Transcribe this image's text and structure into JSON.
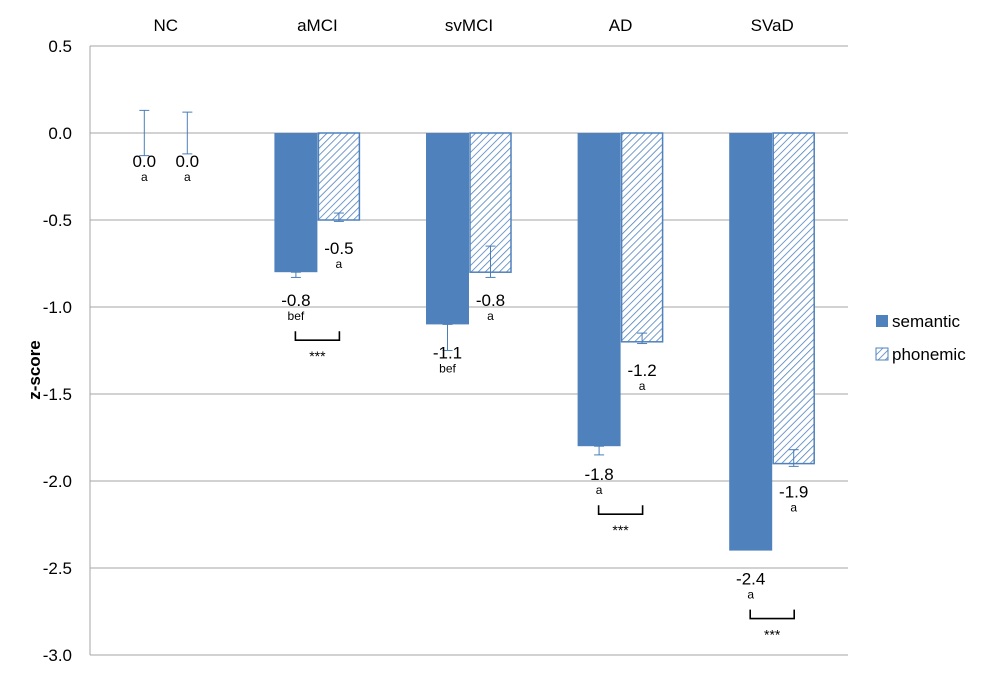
{
  "chart_data": {
    "type": "bar",
    "categories": [
      "NC",
      "aMCI",
      "svMCI",
      "AD",
      "SVaD"
    ],
    "ylabel": "z-score",
    "ylim": [
      -3.0,
      0.5
    ],
    "yticks": [
      "0.5",
      "0.0",
      "-0.5",
      "-1.0",
      "-1.5",
      "-2.0",
      "-2.5",
      "-3.0"
    ],
    "grid": true,
    "legend_position": "right",
    "series": [
      {
        "name": "semantic",
        "color": "#4f81bd",
        "pattern": "solid",
        "values": [
          0.0,
          -0.8,
          -1.1,
          -1.8,
          -2.4
        ],
        "errors": [
          0.13,
          0.03,
          0.15,
          0.05,
          0.0
        ],
        "value_labels": [
          "0.0",
          "-0.8",
          "-1.1",
          "-1.8",
          "-2.4"
        ],
        "sig_labels": [
          "a",
          "bef",
          "bef",
          "a",
          "a"
        ]
      },
      {
        "name": "phonemic",
        "color": "#4f81bd",
        "pattern": "hatched",
        "values": [
          0.0,
          -0.5,
          -0.8,
          -1.2,
          -1.9
        ],
        "errors": [
          0.12,
          0.04,
          0.15,
          0.05,
          0.08
        ],
        "value_labels": [
          "0.0",
          "-0.5",
          "-0.8",
          "-1.2",
          "-1.9"
        ],
        "sig_labels": [
          "a",
          "a",
          "a",
          "a",
          "a"
        ]
      }
    ],
    "significance_brackets": [
      {
        "category": "aMCI",
        "text": "***"
      },
      {
        "category": "AD",
        "text": "***"
      },
      {
        "category": "SVaD",
        "text": "***"
      }
    ]
  }
}
